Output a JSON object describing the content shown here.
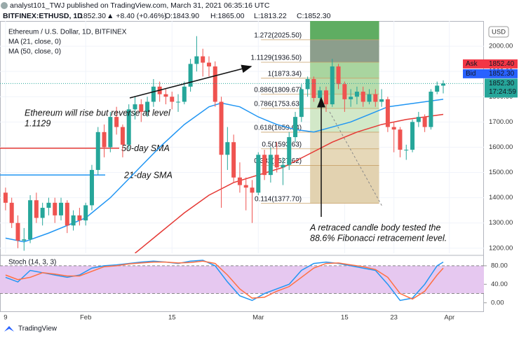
{
  "header": {
    "line1": "analyst101_TWJ published on TradingView.com, March 31, 2021 06:35:16 UTC",
    "symbol": "BITFINEX:ETHUSD, 1D",
    "last": "1852.30",
    "change": "▲ +8.40 (+0.46%)",
    "ohlc": [
      "O:1843.90",
      "H:1865.00",
      "L:1813.22",
      "C:1852.30"
    ]
  },
  "chart_data": [
    {
      "type": "candlestick",
      "title": "Ethereum / U.S. Dollar, 1D, BITFINEX",
      "unit": "USD",
      "up_color": "#26a69a",
      "down_color": "#ef5350",
      "xlim": [
        -0.9,
        77.6
      ],
      "xticks": [
        {
          "value": 0,
          "label": "9"
        },
        {
          "value": 13,
          "label": "Feb"
        },
        {
          "value": 27,
          "label": "15"
        },
        {
          "value": 41,
          "label": "Mar"
        },
        {
          "value": 55,
          "label": "15"
        },
        {
          "value": 63,
          "label": "23"
        },
        {
          "value": 72,
          "label": "Apr"
        }
      ],
      "ylim": [
        1180,
        2100
      ],
      "yticks": [
        {
          "value": 2000,
          "label": "2000.00"
        },
        {
          "value": 1900,
          "label": "1900.00"
        },
        {
          "value": 1800,
          "label": "1800.00"
        },
        {
          "value": 1700,
          "label": "1700.00"
        },
        {
          "value": 1600,
          "label": "1600.00"
        },
        {
          "value": 1500,
          "label": "1500.00"
        },
        {
          "value": 1400,
          "label": "1400.00"
        },
        {
          "value": 1300,
          "label": "1300.00"
        },
        {
          "value": 1200,
          "label": "1200.00"
        }
      ],
      "candles": [
        [
          1420,
          1440,
          1350,
          1380
        ],
        [
          1380,
          1400,
          1280,
          1300
        ],
        [
          1300,
          1330,
          1200,
          1230
        ],
        [
          1230,
          1280,
          1190,
          1235
        ],
        [
          1235,
          1410,
          1220,
          1390
        ],
        [
          1390,
          1420,
          1300,
          1320
        ],
        [
          1320,
          1380,
          1290,
          1360
        ],
        [
          1360,
          1400,
          1330,
          1380
        ],
        [
          1380,
          1400,
          1300,
          1330
        ],
        [
          1330,
          1400,
          1310,
          1380
        ],
        [
          1380,
          1390,
          1260,
          1290
        ],
        [
          1290,
          1350,
          1270,
          1330
        ],
        [
          1330,
          1360,
          1290,
          1310
        ],
        [
          1310,
          1380,
          1290,
          1370
        ],
        [
          1370,
          1530,
          1350,
          1510
        ],
        [
          1510,
          1680,
          1490,
          1660
        ],
        [
          1660,
          1690,
          1560,
          1600
        ],
        [
          1600,
          1740,
          1580,
          1720
        ],
        [
          1720,
          1760,
          1650,
          1680
        ],
        [
          1680,
          1690,
          1560,
          1610
        ],
        [
          1610,
          1770,
          1590,
          1750
        ],
        [
          1750,
          1800,
          1710,
          1770
        ],
        [
          1770,
          1790,
          1700,
          1740
        ],
        [
          1740,
          1800,
          1720,
          1780
        ],
        [
          1780,
          1870,
          1760,
          1840
        ],
        [
          1840,
          1860,
          1780,
          1810
        ],
        [
          1810,
          1830,
          1770,
          1800
        ],
        [
          1800,
          1820,
          1750,
          1780
        ],
        [
          1780,
          1810,
          1740,
          1780
        ],
        [
          1780,
          1860,
          1770,
          1840
        ],
        [
          1840,
          1950,
          1820,
          1930
        ],
        [
          1930,
          2040,
          1900,
          1960
        ],
        [
          1960,
          1990,
          1880,
          1935
        ],
        [
          1935,
          1960,
          1880,
          1920
        ],
        [
          1920,
          1940,
          1760,
          1780
        ],
        [
          1780,
          1800,
          1360,
          1570
        ],
        [
          1570,
          1680,
          1510,
          1620
        ],
        [
          1620,
          1650,
          1460,
          1480
        ],
        [
          1480,
          1540,
          1420,
          1450
        ],
        [
          1450,
          1480,
          1350,
          1440
        ],
        [
          1440,
          1470,
          1300,
          1420
        ],
        [
          1420,
          1580,
          1410,
          1570
        ],
        [
          1570,
          1590,
          1470,
          1490
        ],
        [
          1490,
          1600,
          1460,
          1570
        ],
        [
          1570,
          1620,
          1500,
          1520
        ],
        [
          1520,
          1560,
          1450,
          1530
        ],
        [
          1530,
          1660,
          1510,
          1640
        ],
        [
          1640,
          1740,
          1620,
          1720
        ],
        [
          1720,
          1850,
          1700,
          1830
        ],
        [
          1830,
          1880,
          1800,
          1870
        ],
        [
          1870,
          1880,
          1780,
          1795
        ],
        [
          1795,
          1840,
          1760,
          1825
        ],
        [
          1825,
          1840,
          1740,
          1770
        ],
        [
          1770,
          1950,
          1760,
          1920
        ],
        [
          1920,
          1930,
          1830,
          1850
        ],
        [
          1850,
          1860,
          1740,
          1790
        ],
        [
          1790,
          1830,
          1760,
          1800
        ],
        [
          1800,
          1840,
          1770,
          1820
        ],
        [
          1820,
          1840,
          1760,
          1780
        ],
        [
          1780,
          1830,
          1770,
          1810
        ],
        [
          1810,
          1830,
          1760,
          1780
        ],
        [
          1780,
          1830,
          1760,
          1790
        ],
        [
          1790,
          1800,
          1660,
          1680
        ],
        [
          1680,
          1700,
          1580,
          1670
        ],
        [
          1670,
          1680,
          1560,
          1590
        ],
        [
          1590,
          1610,
          1550,
          1590
        ],
        [
          1590,
          1710,
          1580,
          1700
        ],
        [
          1700,
          1740,
          1680,
          1720
        ],
        [
          1720,
          1730,
          1660,
          1680
        ],
        [
          1680,
          1830,
          1670,
          1820
        ],
        [
          1820,
          1860,
          1810,
          1843.9
        ],
        [
          1843.9,
          1865,
          1813.22,
          1852.3
        ]
      ],
      "series": [
        {
          "name": "MA (21, close, 0)",
          "color": "#2196f3",
          "x": [
            0,
            3,
            7,
            13,
            17,
            21,
            25,
            29,
            33,
            35,
            38,
            41,
            44,
            47,
            50,
            53,
            56,
            59,
            62,
            65,
            68,
            71
          ],
          "values": [
            1240,
            1225,
            1260,
            1320,
            1400,
            1500,
            1600,
            1690,
            1760,
            1775,
            1760,
            1720,
            1690,
            1670,
            1660,
            1680,
            1700,
            1730,
            1760,
            1770,
            1780,
            1790
          ]
        },
        {
          "name": "MA (50, close, 0)",
          "color": "#e53935",
          "x": [
            21,
            22,
            25,
            29,
            33,
            37,
            41,
            45,
            49,
            53,
            57,
            61,
            65,
            68,
            71
          ],
          "values": [
            1180,
            1200,
            1260,
            1340,
            1410,
            1460,
            1490,
            1520,
            1570,
            1620,
            1660,
            1690,
            1710,
            1720,
            1730
          ]
        }
      ],
      "fib_x": [
        49.4,
        60.6
      ],
      "fib_top_color": "#5fad62",
      "fibonacci": [
        {
          "value": 2025.5,
          "label": "1.272(2025.50)",
          "color": "#8c9e8c"
        },
        {
          "value": 1936.5,
          "label": "1.1129(1936.50)",
          "color": "#a9d59f"
        },
        {
          "value": 1873.34,
          "label": "1(1873.34)",
          "color": "#b6dcac"
        },
        {
          "value": 1809.67,
          "label": "0.886(1809.67)",
          "color": "#c4e2b9"
        },
        {
          "value": 1753.63,
          "label": "0.786(1753.63)",
          "color": "#d2e8c8"
        },
        {
          "value": 1659.64,
          "label": "0.618(1659.64)",
          "color": "#e6dcc0"
        },
        {
          "value": 1593.63,
          "label": "0.5(1593.63)",
          "color": "#e6d8b8"
        },
        {
          "value": 1527.62,
          "label": "0.382(1527.62)",
          "color": "#e2d2b0"
        },
        {
          "value": 1377.7,
          "label": "0.114(1377.70)",
          "color": "#e2d2b0"
        }
      ],
      "annotations": [
        {
          "text": "50-day SMA",
          "value": 1596,
          "color": "#e53935"
        },
        {
          "text": "21-day SMA",
          "value": 1490,
          "color": "#2196f3"
        }
      ],
      "notes": [
        [
          "Ethereum will rise  but reverse at level",
          "1.1129"
        ],
        [
          "A retraced candle body tested the",
          "88.6% Fibonacci retracement level."
        ]
      ],
      "price_tags": [
        {
          "name": "Ask",
          "value": 1852.4,
          "label": "1852.40",
          "color": "#f23645"
        },
        {
          "name": "Bid",
          "value": 1852.3,
          "label": "1852.30",
          "color": "#2962ff"
        }
      ],
      "last_price": {
        "value": 1852.3,
        "label": "1852.30",
        "countdown": "17:24:59",
        "color": "#26a69a"
      }
    },
    {
      "type": "line",
      "title": "Stoch (14, 3, 3)",
      "ylim": [
        -20,
        98
      ],
      "band": [
        20,
        80
      ],
      "band_color": "#e6c8f0",
      "yticks": [
        {
          "value": 80,
          "label": "80.00"
        },
        {
          "value": 40,
          "label": "40.00"
        },
        {
          "value": 0,
          "label": "0.00"
        }
      ],
      "series": [
        {
          "color": "#2196f3",
          "x": [
            0,
            2,
            4,
            6,
            8,
            10,
            12,
            14,
            16,
            18,
            20,
            22,
            24,
            26,
            28,
            30,
            32,
            34,
            36,
            38,
            40,
            42,
            44,
            46,
            48,
            50,
            52,
            54,
            56,
            58,
            60,
            62,
            64,
            66,
            68,
            70,
            71
          ],
          "values": [
            55,
            45,
            70,
            65,
            60,
            55,
            60,
            75,
            80,
            82,
            85,
            88,
            90,
            88,
            85,
            90,
            92,
            80,
            45,
            15,
            5,
            20,
            30,
            40,
            70,
            85,
            88,
            85,
            80,
            75,
            70,
            40,
            5,
            10,
            40,
            80,
            88
          ]
        },
        {
          "color": "#ff7043",
          "x": [
            0,
            2,
            4,
            6,
            8,
            10,
            12,
            14,
            16,
            18,
            20,
            22,
            24,
            26,
            28,
            30,
            32,
            34,
            36,
            38,
            40,
            42,
            44,
            46,
            48,
            50,
            52,
            54,
            56,
            58,
            60,
            62,
            64,
            66,
            68,
            70,
            71
          ],
          "values": [
            60,
            50,
            55,
            65,
            62,
            58,
            58,
            68,
            78,
            80,
            84,
            86,
            88,
            88,
            86,
            87,
            90,
            85,
            60,
            30,
            10,
            12,
            25,
            35,
            55,
            75,
            85,
            86,
            82,
            78,
            72,
            55,
            20,
            8,
            25,
            60,
            75
          ]
        }
      ]
    }
  ],
  "brand": "TradingView"
}
